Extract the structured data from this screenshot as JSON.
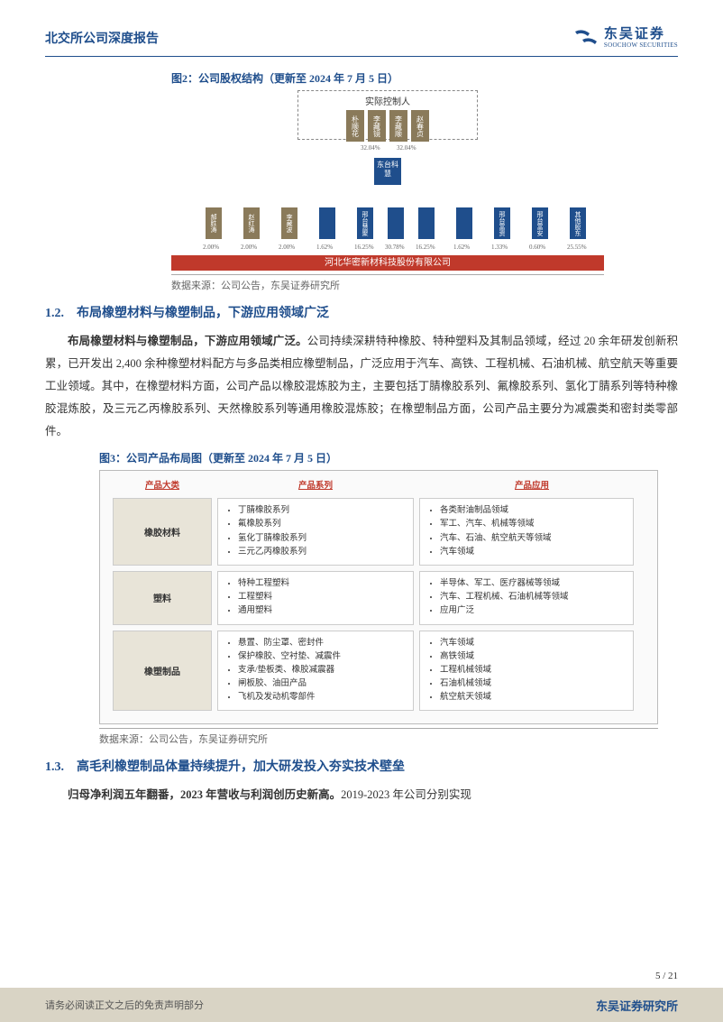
{
  "header": {
    "title": "北交所公司深度报告",
    "logo_cn": "东吴证券",
    "logo_en": "SOOCHOW SECURITIES"
  },
  "fig2": {
    "caption": "图2：公司股权结构（更新至 2024 年 7 月 5 日）",
    "controller_label": "实际控制人",
    "persons": [
      "朴顺花",
      "李藏镜",
      "李藏顺",
      "赵春贞"
    ],
    "pct_top_left": "32.04%",
    "pct_top_right": "32.04%",
    "mid_entity": "东台科慧",
    "sub_entities": [
      {
        "name": "郝胜涛",
        "pct": "2.00%",
        "cls": "sub-olive"
      },
      {
        "name": "赵红涛",
        "pct": "2.00%",
        "cls": "sub-olive"
      },
      {
        "name": "李藏波",
        "pct": "2.00%",
        "cls": "sub-olive"
      },
      {
        "name": "",
        "pct": "1.62%",
        "cls": "sub-blue"
      },
      {
        "name": "邢台慧聚",
        "pct": "16.25%",
        "cls": "sub-blue"
      },
      {
        "name": "",
        "pct": "30.78%",
        "cls": "sub-blue"
      },
      {
        "name": "",
        "pct": "16.25%",
        "cls": "sub-blue"
      },
      {
        "name": "",
        "pct": "1.62%",
        "cls": "sub-blue"
      },
      {
        "name": "邢台富资",
        "pct": "1.33%",
        "cls": "sub-blue"
      },
      {
        "name": "邢台富安",
        "pct": "0.60%",
        "cls": "sub-blue"
      },
      {
        "name": "其他股东",
        "pct": "25.55%",
        "cls": "sub-blue"
      }
    ],
    "bottom_bar": "河北华密新材科技股份有限公司",
    "source": "数据来源：公司公告，东吴证券研究所"
  },
  "section_1_2": {
    "title": "1.2.　布局橡塑材料与橡塑制品，下游应用领域广泛",
    "p1_bold": "布局橡塑材料与橡塑制品，下游应用领域广泛。",
    "p1": "公司持续深耕特种橡胶、特种塑料及其制品领域，经过 20 余年研发创新积累，已开发出 2,400 余种橡塑材料配方与多品类相应橡塑制品，广泛应用于汽车、高铁、工程机械、石油机械、航空航天等重要工业领域。其中，在橡塑材料方面，公司产品以橡胶混炼胶为主，主要包括丁腈橡胶系列、氟橡胶系列、氢化丁腈系列等特种橡胶混炼胶，及三元乙丙橡胶系列、天然橡胶系列等通用橡胶混炼胶；在橡塑制品方面，公司产品主要分为减震类和密封类零部件。"
  },
  "fig3": {
    "caption": "图3：公司产品布局图（更新至 2024 年 7 月 5 日）",
    "headers": [
      "产品大类",
      "产品系列",
      "产品应用"
    ],
    "rows": [
      {
        "category": "橡胶材料",
        "series": [
          "丁腈橡胶系列",
          "氟橡胶系列",
          "氢化丁腈橡胶系列",
          "三元乙丙橡胶系列"
        ],
        "apps": [
          "各类耐油制品领域",
          "军工、汽车、机械等领域",
          "汽车、石油、航空航天等领域",
          "汽车领域"
        ]
      },
      {
        "category": "塑料",
        "series": [
          "特种工程塑料",
          "工程塑料",
          "通用塑料"
        ],
        "apps": [
          "半导体、军工、医疗器械等领域",
          "汽车、工程机械、石油机械等领域",
          "应用广泛"
        ]
      },
      {
        "category": "橡塑制品",
        "series": [
          "悬置、防尘罩、密封件",
          "保护橡胶、空衬垫、减震件",
          "支承/垫板类、橡胶减震器",
          "闸板胶、油田产品",
          "飞机及发动机零部件"
        ],
        "apps": [
          "汽车领域",
          "高铁领域",
          "工程机械领域",
          "石油机械领域",
          "航空航天领域"
        ]
      }
    ],
    "source": "数据来源：公司公告，东吴证券研究所"
  },
  "section_1_3": {
    "title": "1.3.　高毛利橡塑制品体量持续提升，加大研发投入夯实技术壁垒",
    "p1_bold": "归母净利润五年翻番，2023 年营收与利润创历史新高。",
    "p1": "2019-2023 年公司分别实现"
  },
  "page_num": "5 / 21",
  "footer": {
    "left": "请务必阅读正文之后的免责声明部分",
    "right": "东吴证券研究所"
  },
  "colors": {
    "brand": "#1f4e8c",
    "accent_red": "#c0392b",
    "olive": "#8a7a5a",
    "footer_bg": "#d9d4c5"
  }
}
